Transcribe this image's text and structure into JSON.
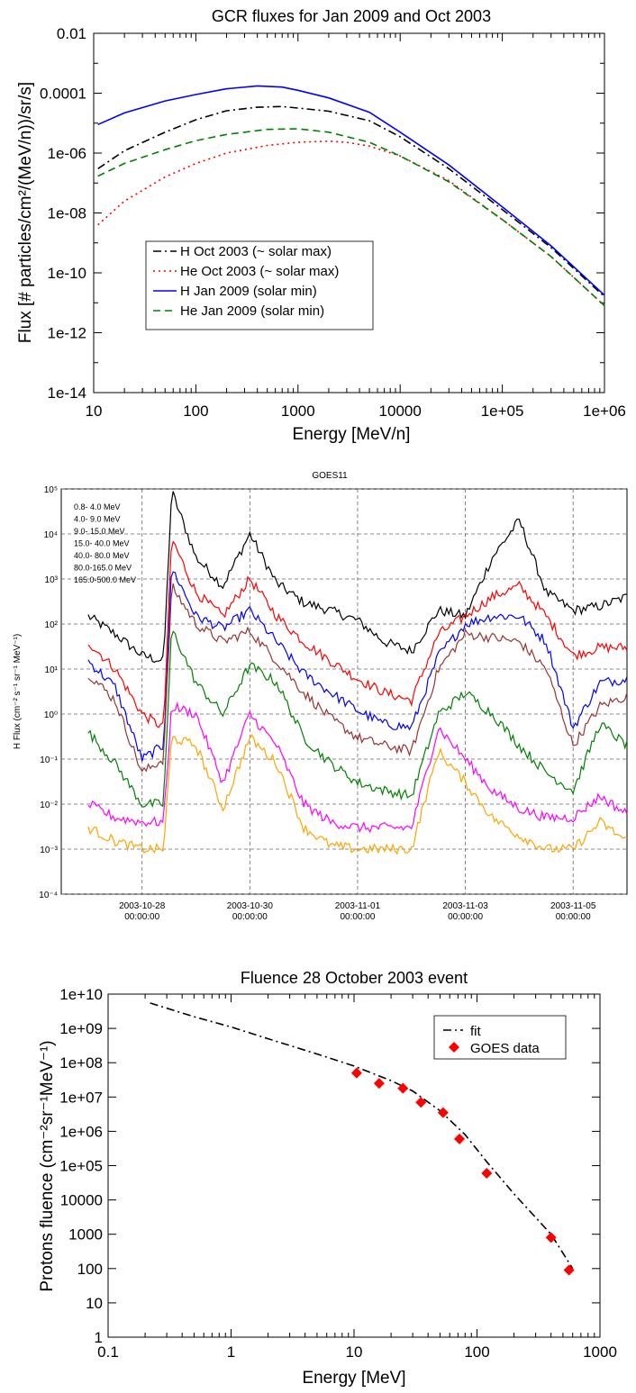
{
  "chart_data": [
    {
      "type": "line",
      "title": "GCR fluxes for Jan 2009 and Oct 2003",
      "xlabel": "Energy [MeV/n]",
      "ylabel": "Flux  [# particles/cm²/(MeV/n))/sr/s]",
      "xscale": "log",
      "yscale": "log",
      "xlim": [
        10,
        1000000
      ],
      "ylim": [
        1e-14,
        0.01
      ],
      "x_ticks": [
        "10",
        "100",
        "1000",
        "10000",
        "1e+05",
        "1e+06"
      ],
      "y_ticks": [
        "1e-14",
        "1e-12",
        "1e-10",
        "1e-08",
        "1e-06",
        "0.0001",
        "0.01"
      ],
      "legend_position": "center-left",
      "series": [
        {
          "name": "H   Oct 2003 (~ solar max)",
          "color": "#000000",
          "dash": "dashdot",
          "x": [
            11,
            20,
            50,
            100,
            200,
            400,
            700,
            1000,
            2000,
            5000,
            10000,
            30000,
            100000,
            300000,
            1000000
          ],
          "y": [
            3e-07,
            1.2e-06,
            5e-06,
            1.3e-05,
            2.6e-05,
            3.4e-05,
            3.6e-05,
            3.2e-05,
            2.5e-05,
            1.2e-05,
            3.5e-06,
            3e-07,
            1.3e-08,
            7e-10,
            1.6e-11
          ]
        },
        {
          "name": "He Oct 2003 (~ solar max)",
          "color": "#ff0000",
          "dash": "dot",
          "x": [
            11,
            20,
            50,
            100,
            200,
            500,
            1000,
            2000,
            3000,
            5000,
            10000,
            30000,
            100000,
            300000,
            1000000
          ],
          "y": [
            4e-09,
            2.5e-08,
            1.6e-07,
            4.5e-07,
            1e-06,
            1.8e-06,
            2.3e-06,
            2.5e-06,
            2.3e-06,
            1.7e-06,
            8e-07,
            1.2e-07,
            6e-09,
            3.5e-10,
            8e-12
          ]
        },
        {
          "name": "H   Jan 2009 (solar min)",
          "color": "#0000ff",
          "dash": "solid",
          "x": [
            11,
            20,
            50,
            100,
            200,
            400,
            700,
            1000,
            2000,
            5000,
            10000,
            30000,
            100000,
            300000,
            1000000
          ],
          "y": [
            9e-06,
            2.2e-05,
            5.5e-05,
            9e-05,
            0.00014,
            0.000175,
            0.00016,
            0.000125,
            7e-05,
            2.3e-05,
            5e-06,
            4e-07,
            1.6e-08,
            8e-10,
            1.8e-11
          ]
        },
        {
          "name": "He Jan 2009 (solar min)",
          "color": "#008000",
          "dash": "dashed",
          "x": [
            11,
            20,
            50,
            100,
            200,
            500,
            1000,
            2000,
            5000,
            10000,
            30000,
            100000,
            300000,
            1000000
          ],
          "y": [
            1.7e-07,
            4.5e-07,
            1.3e-06,
            2.6e-06,
            4.2e-06,
            6.2e-06,
            6.5e-06,
            5e-06,
            2.3e-06,
            8e-07,
            1.1e-07,
            6e-09,
            3.5e-10,
            8e-12
          ]
        }
      ]
    },
    {
      "type": "line",
      "title": "GOES11",
      "ylabel": "H Flux (cm⁻² s⁻¹ sr⁻¹ MeV⁻¹)",
      "yscale": "log",
      "ylim": [
        0.0001,
        100000
      ],
      "xlim": [
        "2003-10-26 12:00",
        "2003-11-06 00:00"
      ],
      "y_ticks": [
        "10⁻⁴",
        "10⁻³",
        "10⁻²",
        "10⁻¹",
        "10⁰",
        "10¹",
        "10²",
        "10³",
        "10⁴",
        "10⁵"
      ],
      "x_ticks": [
        {
          "date": "2003-10-28",
          "time": "00:00:00"
        },
        {
          "date": "2003-10-30",
          "time": "00:00:00"
        },
        {
          "date": "2003-11-01",
          "time": "00:00:00"
        },
        {
          "date": "2003-11-03",
          "time": "00:00:00"
        },
        {
          "date": "2003-11-05",
          "time": "00:00:00"
        }
      ],
      "grid": true,
      "legend_position": "top-left",
      "x_day_keys": [
        0,
        0.5,
        1,
        1.4,
        1.55,
        2,
        2.5,
        3,
        3.5,
        4,
        4.5,
        5,
        5.5,
        6,
        6.5,
        7,
        7.5,
        8,
        8.5,
        9,
        9.5,
        10
      ],
      "series": [
        {
          "name": "0.8-  4.0 MeV",
          "color": "#000000",
          "y": [
            150,
            60,
            20,
            15,
            90000,
            3000,
            700,
            10000,
            800,
            300,
            200,
            120,
            40,
            25,
            200,
            150,
            3000,
            20000,
            500,
            200,
            250,
            400
          ]
        },
        {
          "name": "4.0-  9.0 MeV",
          "color": "#ff0000",
          "y": [
            40,
            10,
            1,
            0.5,
            8000,
            500,
            150,
            1000,
            150,
            40,
            15,
            6,
            3,
            2,
            60,
            150,
            400,
            700,
            150,
            20,
            30,
            30
          ]
        },
        {
          "name": "9.0- 15.0 MeV",
          "color": "#0000ff",
          "y": [
            15,
            4,
            0.1,
            0.2,
            1800,
            150,
            80,
            200,
            40,
            8,
            3,
            1.2,
            0.6,
            0.5,
            20,
            100,
            150,
            150,
            40,
            0.5,
            5,
            6
          ]
        },
        {
          "name": "15.0- 40.0 MeV",
          "color": "#993333",
          "y": [
            8,
            2,
            0.05,
            0.1,
            700,
            100,
            40,
            70,
            15,
            3,
            0.8,
            0.3,
            0.2,
            0.15,
            10,
            60,
            50,
            40,
            10,
            0.2,
            1.5,
            2.5
          ]
        },
        {
          "name": "40.0- 80.0 MeV",
          "color": "#008000",
          "y": [
            0.4,
            0.08,
            0.01,
            0.01,
            80,
            5,
            1,
            12,
            5,
            0.3,
            0.08,
            0.03,
            0.02,
            0.015,
            1,
            3,
            1,
            0.2,
            0.05,
            0.02,
            0.6,
            0.2
          ]
        },
        {
          "name": "80.0-165.0 MeV",
          "color": "#ff00ff",
          "y": [
            0.01,
            0.005,
            0.004,
            0.004,
            1.5,
            1,
            0.03,
            1,
            0.2,
            0.01,
            0.004,
            0.003,
            0.003,
            0.003,
            0.5,
            0.1,
            0.02,
            0.008,
            0.005,
            0.005,
            0.015,
            0.006
          ]
        },
        {
          "name": "165.0-500.0 MeV",
          "color": "#ffa500",
          "y": [
            0.003,
            0.0015,
            0.001,
            0.001,
            0.3,
            0.2,
            0.008,
            0.3,
            0.08,
            0.003,
            0.0012,
            0.001,
            0.001,
            0.001,
            0.15,
            0.03,
            0.005,
            0.002,
            0.001,
            0.001,
            0.004,
            0.0015
          ]
        }
      ]
    },
    {
      "type": "line",
      "title": "Fluence 28 October 2003 event",
      "xlabel": "Energy  [MeV]",
      "ylabel": "Protons fluence (cm⁻²sr⁻¹MeV⁻¹)",
      "xscale": "log",
      "yscale": "log",
      "xlim": [
        0.1,
        1000
      ],
      "ylim": [
        1,
        10000000000.0
      ],
      "x_ticks": [
        "0.1",
        "1",
        "10",
        "100",
        "1000"
      ],
      "y_ticks": [
        "1",
        "10",
        "100",
        "1000",
        "10000",
        "1e+05",
        "1e+06",
        "1e+07",
        "1e+08",
        "1e+09",
        "1e+10"
      ],
      "legend_position": "top-right",
      "series": [
        {
          "name": "fit",
          "color": "#000000",
          "dash": "dashdot",
          "x": [
            0.22,
            0.5,
            1,
            2,
            5,
            10,
            20,
            30,
            50,
            80,
            120,
            200,
            400,
            600
          ],
          "y": [
            5500000000.0,
            2200000000.0,
            1100000000.0,
            500000000.0,
            180000000.0,
            80000000.0,
            30000000.0,
            15000000.0,
            4000000.0,
            800000.0,
            130000.0,
            15000.0,
            1000,
            100
          ]
        },
        {
          "name": "GOES data",
          "color": "#ff0000",
          "marker": "diamond",
          "x": [
            10.5,
            16,
            25,
            35,
            53,
            72,
            120,
            400,
            560
          ],
          "y": [
            50000000.0,
            25000000.0,
            18000000.0,
            7000000.0,
            3500000.0,
            600000.0,
            60000.0,
            800,
            90
          ]
        }
      ]
    }
  ]
}
